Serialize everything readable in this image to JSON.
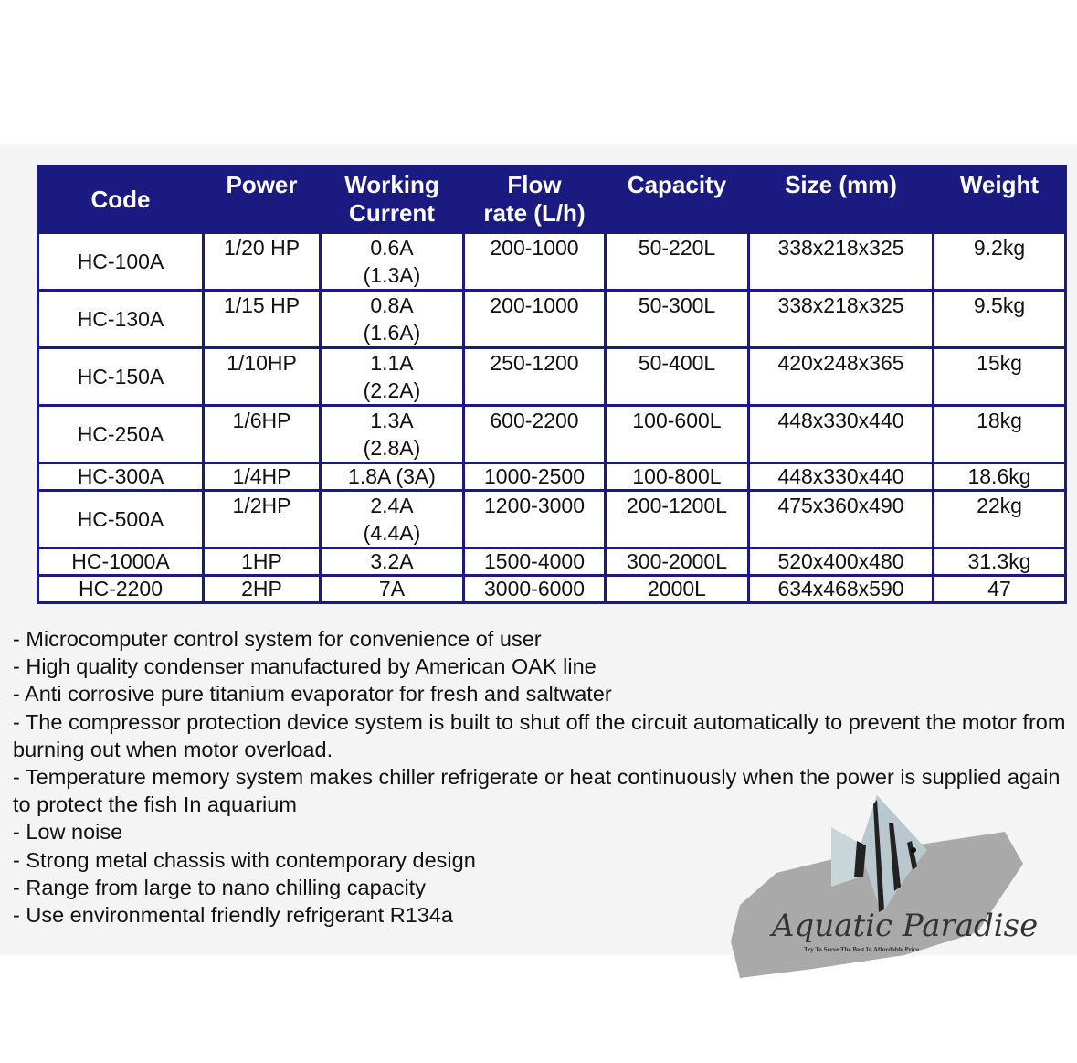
{
  "table": {
    "headers": [
      "Code",
      "Power",
      "Working Current",
      "Flow rate (L/h)",
      "Capacity",
      "Size (mm)",
      "Weight"
    ],
    "header_lines": [
      [
        "Code"
      ],
      [
        "Power"
      ],
      [
        "Working",
        "Current"
      ],
      [
        "Flow",
        "rate (L/h)"
      ],
      [
        "Capacity"
      ],
      [
        "Size (mm)"
      ],
      [
        "Weight"
      ]
    ],
    "rows": [
      {
        "code": "HC-100A",
        "power": "1/20 HP",
        "current": "0.6A",
        "current2": "(1.3A)",
        "flow": "200-1000",
        "capacity": "50-220L",
        "size": "338x218x325",
        "weight": "9.2kg"
      },
      {
        "code": "HC-130A",
        "power": "1/15 HP",
        "current": "0.8A",
        "current2": "(1.6A)",
        "flow": "200-1000",
        "capacity": "50-300L",
        "size": "338x218x325",
        "weight": "9.5kg"
      },
      {
        "code": "HC-150A",
        "power": "1/10HP",
        "current": "1.1A",
        "current2": "(2.2A)",
        "flow": "250-1200",
        "capacity": "50-400L",
        "size": "420x248x365",
        "weight": "15kg"
      },
      {
        "code": "HC-250A",
        "power": "1/6HP",
        "current": "1.3A",
        "current2": "(2.8A)",
        "flow": "600-2200",
        "capacity": "100-600L",
        "size": "448x330x440",
        "weight": "18kg"
      },
      {
        "code": "HC-300A",
        "power": "1/4HP",
        "current": "1.8A (3A)",
        "current2": "",
        "flow": "1000-2500",
        "capacity": "100-800L",
        "size": "448x330x440",
        "weight": "18.6kg"
      },
      {
        "code": "HC-500A",
        "power": "1/2HP",
        "current": "2.4A",
        "current2": "(4.4A)",
        "flow": "1200-3000",
        "capacity": "200-1200L",
        "size": "475x360x490",
        "weight": "22kg"
      },
      {
        "code": "HC-1000A",
        "power": "1HP",
        "current": "3.2A",
        "current2": "",
        "flow": "1500-4000",
        "capacity": "300-2000L",
        "size": "520x400x480",
        "weight": "31.3kg"
      },
      {
        "code": "HC-2200",
        "power": "2HP",
        "current": "7A",
        "current2": "",
        "flow": "3000-6000",
        "capacity": "2000L",
        "size": "634x468x590",
        "weight": "47"
      }
    ]
  },
  "features": [
    "- Microcomputer control system for convenience of user",
    "- High quality condenser manufactured by American OAK line",
    "- Anti corrosive pure titanium evaporator for fresh and saltwater",
    "- The compressor protection device system is built to shut off the circuit automatically to prevent the motor from burning out when motor overload.",
    "- Temperature memory system makes chiller refrigerate or heat continuously when the power is supplied again to protect the fish In aquarium",
    "- Low noise",
    "- Strong metal chassis with contemporary design",
    "- Range from large to nano chilling capacity",
    "- Use environmental friendly refrigerant R134a"
  ],
  "logo": {
    "name": "Aquatic Paradise",
    "tagline": "Try To Serve The Best In Affordable Price"
  },
  "colors": {
    "header_bg": "#1a1a80",
    "panel_bg": "#f4f4f4"
  }
}
